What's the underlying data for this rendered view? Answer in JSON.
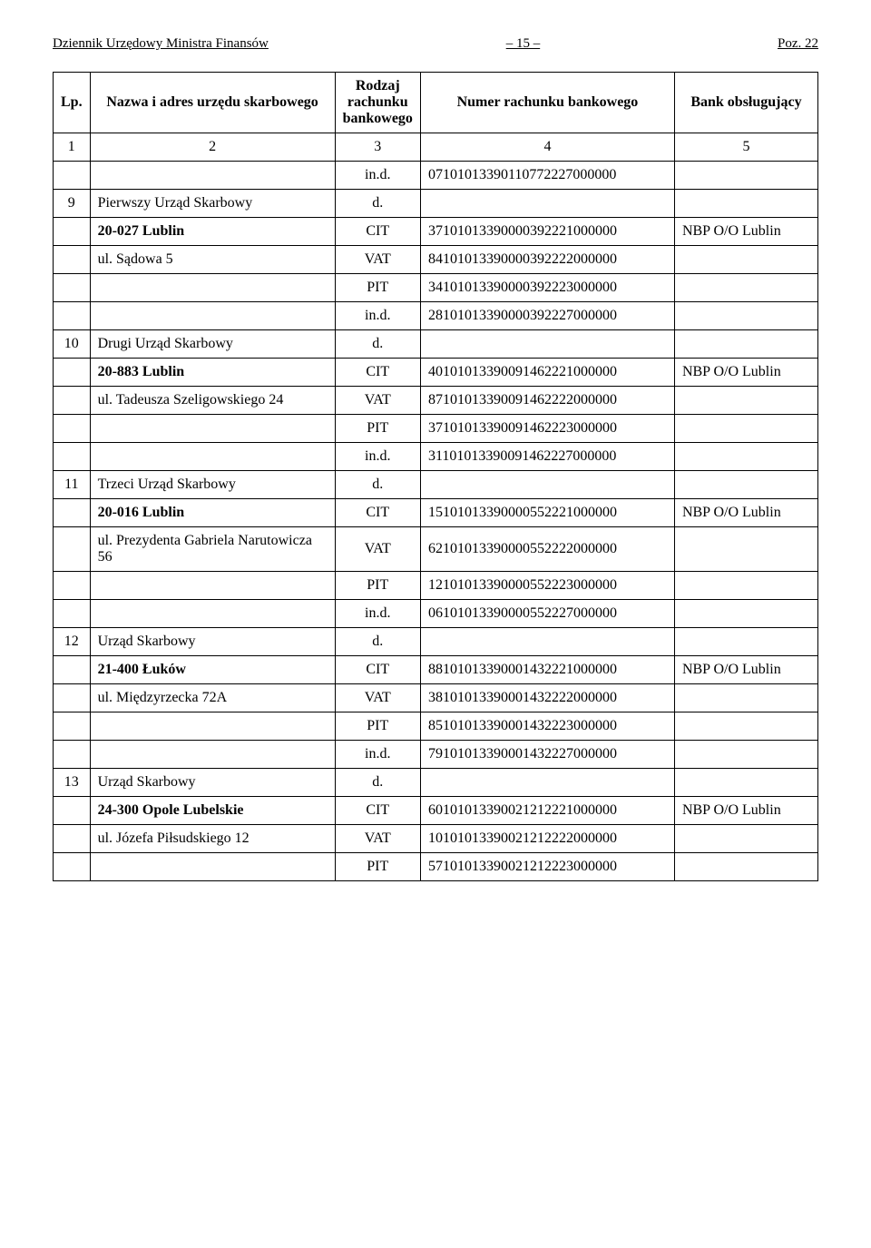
{
  "header": {
    "left": "Dziennik Urzędowy Ministra Finansów",
    "page": "– 15 –",
    "right": "Poz. 22"
  },
  "table": {
    "columns": {
      "lp": "Lp.",
      "name": "Nazwa i adres urzędu skarbowego",
      "type": "Rodzaj rachunku bankowego",
      "acct": "Numer rachunku bankowego",
      "bank": "Bank obsługujący"
    },
    "numrow": {
      "c1": "1",
      "c2": "2",
      "c3": "3",
      "c4": "4",
      "c5": "5"
    },
    "rows": [
      {
        "lp": "",
        "name": "",
        "type": "in.d.",
        "acct": "07101013390110772227000000",
        "bank": ""
      },
      {
        "lp": "9",
        "name": "Pierwszy Urząd Skarbowy",
        "type": "d.",
        "acct": "",
        "bank": ""
      },
      {
        "lp": "",
        "name": "20-027 Lublin",
        "name_bold": true,
        "type": "CIT",
        "acct": "37101013390000392221000000",
        "bank": "NBP O/O Lublin"
      },
      {
        "lp": "",
        "name": "ul. Sądowa 5",
        "type": "VAT",
        "acct": "84101013390000392222000000",
        "bank": ""
      },
      {
        "lp": "",
        "name": "",
        "type": "PIT",
        "acct": "34101013390000392223000000",
        "bank": ""
      },
      {
        "lp": "",
        "name": "",
        "type": "in.d.",
        "acct": "28101013390000392227000000",
        "bank": ""
      },
      {
        "lp": "10",
        "name": "Drugi Urząd Skarbowy",
        "type": "d.",
        "acct": "",
        "bank": ""
      },
      {
        "lp": "",
        "name": "20-883 Lublin",
        "name_bold": true,
        "type": "CIT",
        "acct": "40101013390091462221000000",
        "bank": "NBP O/O Lublin"
      },
      {
        "lp": "",
        "name": "ul. Tadeusza Szeligowskiego 24",
        "name_indent": true,
        "type": "VAT",
        "acct": "87101013390091462222000000",
        "bank": ""
      },
      {
        "lp": "",
        "name": "",
        "type": "PIT",
        "acct": "37101013390091462223000000",
        "bank": ""
      },
      {
        "lp": "",
        "name": "",
        "type": "in.d.",
        "acct": "31101013390091462227000000",
        "bank": ""
      },
      {
        "lp": "11",
        "name": "Trzeci Urząd Skarbowy",
        "type": "d.",
        "acct": "",
        "bank": ""
      },
      {
        "lp": "",
        "name": "20-016 Lublin",
        "name_bold": true,
        "type": "CIT",
        "acct": "15101013390000552221000000",
        "bank": "NBP O/O Lublin"
      },
      {
        "lp": "",
        "name": "ul. Prezydenta Gabriela Narutowicza 56",
        "name_indent": true,
        "type": "VAT",
        "acct": "62101013390000552222000000",
        "bank": ""
      },
      {
        "lp": "",
        "name": "",
        "type": "PIT",
        "acct": "12101013390000552223000000",
        "bank": ""
      },
      {
        "lp": "",
        "name": "",
        "type": "in.d.",
        "acct": "06101013390000552227000000",
        "bank": ""
      },
      {
        "lp": "12",
        "name": "Urząd Skarbowy",
        "type": "d.",
        "acct": "",
        "bank": ""
      },
      {
        "lp": "",
        "name": "21-400 Łuków",
        "name_bold": true,
        "type": "CIT",
        "acct": "88101013390001432221000000",
        "bank": "NBP O/O Lublin"
      },
      {
        "lp": "",
        "name": "ul. Międzyrzecka 72A",
        "type": "VAT",
        "acct": "38101013390001432222000000",
        "bank": ""
      },
      {
        "lp": "",
        "name": "",
        "type": "PIT",
        "acct": "85101013390001432223000000",
        "bank": ""
      },
      {
        "lp": "",
        "name": "",
        "type": "in.d.",
        "acct": "79101013390001432227000000",
        "bank": ""
      },
      {
        "lp": "13",
        "name": "Urząd Skarbowy",
        "type": "d.",
        "acct": "",
        "bank": ""
      },
      {
        "lp": "",
        "name": "24-300 Opole Lubelskie",
        "name_bold": true,
        "type": "CIT",
        "acct": "60101013390021212221000000",
        "bank": "NBP O/O Lublin"
      },
      {
        "lp": "",
        "name": "ul. Józefa Piłsudskiego 12",
        "type": "VAT",
        "acct": "10101013390021212222000000",
        "bank": ""
      },
      {
        "lp": "",
        "name": "",
        "type": "PIT",
        "acct": "57101013390021212223000000",
        "bank": ""
      }
    ]
  }
}
